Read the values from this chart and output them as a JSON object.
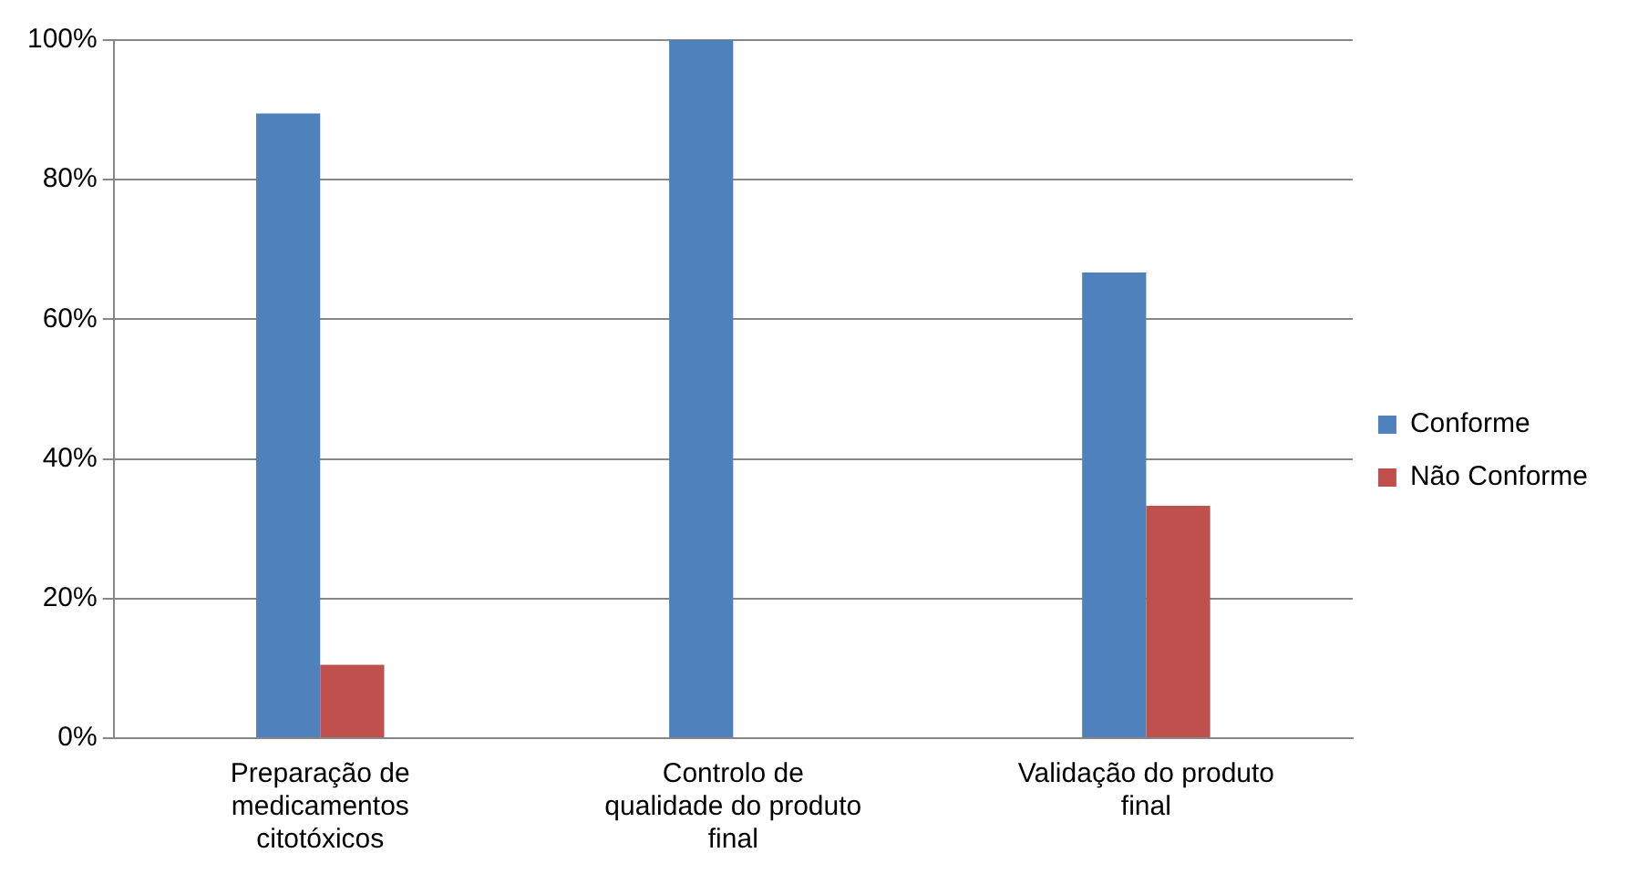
{
  "chart_data": {
    "type": "bar",
    "categories": [
      "Preparação de medicamentos citotóxicos",
      "Controlo de qualidade do produto final",
      "Validação do produto final"
    ],
    "series": [
      {
        "name": "Conforme",
        "color": "#4f81bd",
        "values": [
          89.5,
          100,
          66.7
        ]
      },
      {
        "name": "Não Conforme",
        "color": "#c0504d",
        "values": [
          10.5,
          0,
          33.3
        ]
      }
    ],
    "ylim": [
      0,
      100
    ],
    "yticks": [
      {
        "value": 0,
        "label": "0%"
      },
      {
        "value": 20,
        "label": "20%"
      },
      {
        "value": 40,
        "label": "40%"
      },
      {
        "value": 60,
        "label": "60%"
      },
      {
        "value": 80,
        "label": "80%"
      },
      {
        "value": 100,
        "label": "100%"
      }
    ],
    "grid": "y",
    "legend": "right"
  }
}
